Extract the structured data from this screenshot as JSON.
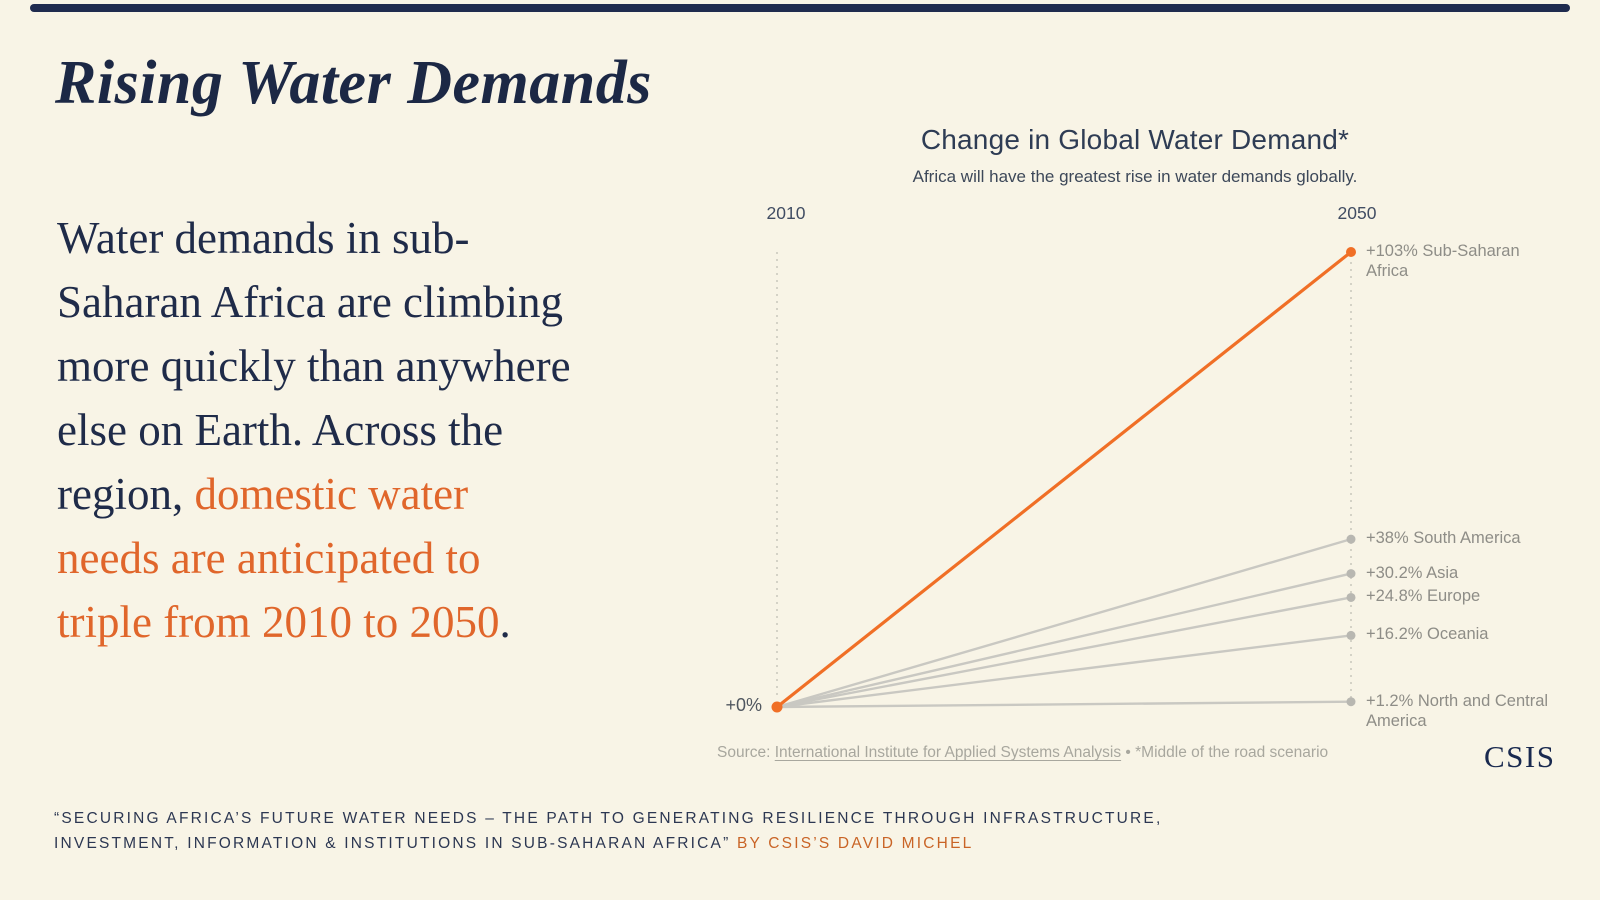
{
  "page": {
    "background": "#f8f4e6",
    "navy": "#1f2b4e",
    "orange_text": "#e0662b",
    "orange_line": "#f06f26",
    "gray_line": "#c9c8c2",
    "gray_dot": "#b8b7b1",
    "gridline": "#ccc9bf"
  },
  "header": {
    "title": "Rising Water Demands"
  },
  "intro": {
    "lead": "Water demands in sub-\nSaharan Africa are climbing\nmore quickly than anywhere\nelse on Earth. Across the\nregion, ",
    "highlight": "domestic water\nneeds are anticipated to\n triple from 2010 to 2050",
    "tail": "."
  },
  "chart_data": {
    "type": "line",
    "variant": "slopegraph",
    "title": "Change in Global Water Demand*",
    "subtitle": "Africa will have the greatest rise in water demands globally.",
    "x": [
      "2010",
      "2050"
    ],
    "start_label": "+0%",
    "start_value_pct": 0,
    "ylim": [
      0,
      103
    ],
    "grid": "dotted vertical lines at 2010 and 2050",
    "legend_position": "labels at right endpoints",
    "series": [
      {
        "name": "Sub-Saharan Africa",
        "label": "+103% Sub-Saharan\nAfrica",
        "value_pct": 103,
        "color": "#f06f26",
        "emphasis": true
      },
      {
        "name": "South America",
        "label": "+38% South America",
        "value_pct": 38,
        "color": "#c9c8c2",
        "emphasis": false
      },
      {
        "name": "Asia",
        "label": "+30.2% Asia",
        "value_pct": 30.2,
        "color": "#c9c8c2",
        "emphasis": false
      },
      {
        "name": "Europe",
        "label": "+24.8% Europe",
        "value_pct": 24.8,
        "color": "#c9c8c2",
        "emphasis": false
      },
      {
        "name": "Oceania",
        "label": "+16.2% Oceania",
        "value_pct": 16.2,
        "color": "#c9c8c2",
        "emphasis": false
      },
      {
        "name": "North and Central America",
        "label": "+1.2% North and Central\nAmerica",
        "value_pct": 1.2,
        "color": "#c9c8c2",
        "emphasis": false
      }
    ]
  },
  "source": {
    "prefix": "Source: ",
    "link_text": "International Institute for Applied Systems Analysis",
    "suffix": " • *Middle of the road scenario"
  },
  "logo": {
    "text": "CSIS"
  },
  "footer": {
    "line1": "“SECURING AFRICA’S FUTURE WATER NEEDS – THE PATH TO GENERATING RESILIENCE THROUGH INFRASTRUCTURE,",
    "line2": "INVESTMENT, INFORMATION & INSTITUTIONS IN SUB-SAHARAN AFRICA” ",
    "byline": "BY CSIS’S DAVID MICHEL"
  }
}
